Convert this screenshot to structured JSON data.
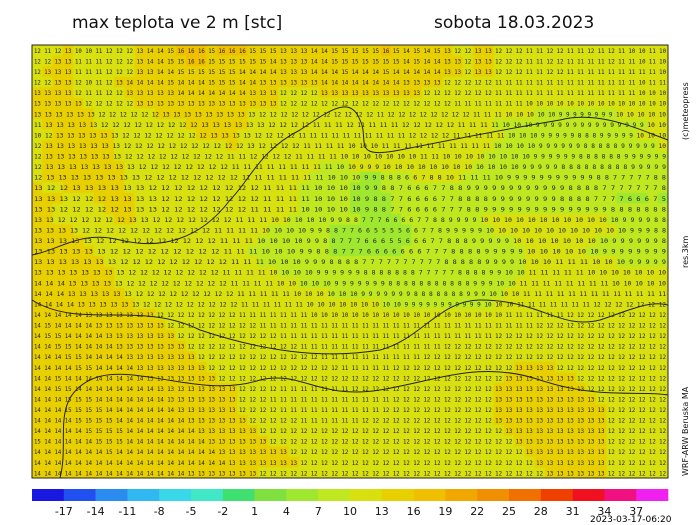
{
  "header": {
    "title": "max teplota ve 2 m [stc]",
    "date": "sobota 18.03.2023"
  },
  "side_texts": {
    "copyright": "(c)meteopress",
    "resolution": "res.3km",
    "model": "WRF-ARW Beruska MA"
  },
  "timestamp": "2023-03-17-06:20",
  "map": {
    "grid": [
      "12 11 12 13 10 10 11 12 12 12 13 14 14 15 16 16 16 15 16 16 16 15 15 15 13 13 13 14 14 15 15 15 15 15 16 15 14 15 14 15 13 12 12 13 13 12 12 12 11 11 12 12 11 11 12 11 12 11 10 10 11 10",
      "12 12 13 13 11 11 11 12 12 12 13 14 14 15 15 16 16 15 15 15 15 15 15 14 13 13 13 14 14 15 15 15 15 15 15 15 14 15 14 14 13 13 12 13 13 12 12 12 11 11 12 12 11 11 11 11 12 11 11 10 11 10",
      "12 13 13 13 11 11 11 12 12 12 13 13 14 14 15 15 15 15 15 15 14 14 14 14 13 13 13 14 14 14 15 14 14 14 15 14 14 14 14 14 13 13 12 13 13 12 12 12 11 11 12 12 11 11 11 11 11 11 11 11 11 10",
      "12 12 13 13 12 10 11 12 13 14 14 14 14 15 14 14 14 15 15 15 14 14 13 13 13 13 13 13 14 14 14 14 14 14 14 14 13 13 13 13 12 12 12 12 12 11 11 11 11 11 11 11 11 11 11 11 11 11 11 10 11 11",
      "13 13 13 13 12 11 11 12 12 13 13 13 13 13 14 14 14 14 14 14 14 13 13 13 12 12 12 12 13 13 13 13 13 13 13 13 13 13 12 12 12 12 12 12 12 11 11 11 11 11 11 11 11 11 11 11 11 11 11 10 10 10",
      "13 13 13 13 13 12 12 12 12 12 13 13 13 13 13 13 13 13 13 13 13 13 13 13 12 12 12 12 12 12 12 12 12 12 12 12 12 12 12 12 12 11 11 11 11 11 11 11 10 10 10 10 10 10 10 10 10 10 10 10 10 10",
      "13 13 13 13 13 13 12 12 12 12 12 12 13 13 13 13 13 13 13 13 13 12 12 12 12 12 12 12 12 12 12 12 11 12 12 12 12 12 12 12 12 11 11 11 10 10 10 10 10 9 9 9 9 9 9 9 9 10 10 10 10 10",
      "11 13 13 13 13 13 12 12 12 12 12 12 12 12 12 13 13 13 13 13 13 12 12 12 12 11 11 11 12 11 11 11 11 12 12 12 12 12 11 11 11 11 10 10 10 9 9 9 9 9 9 9 9 9 9 9 9 9 9 9 10 10",
      "10 12 13 13 13 13 13 13 12 12 12 12 12 12 12 12 13 13 13 13 12 12 12 12 11 11 11 11 11 11 11 11 11 11 12 12 12 12 11 11 11 11 11 10 10 10 9 9 9 9 9 8 8 8 9 9 9 9 9 10 10 10",
      "12 13 13 13 13 13 13 13 12 12 12 12 12 12 12 12 12 12 12 13 12 12 12 12 11 11 11 11 10 10 10 11 11 11 11 11 11 11 11 11 11 10 10 10 10 9 9 9 9 9 9 8 8 8 8 8 9 9 9 9 9 10",
      "12 13 13 13 13 13 13 13 12 12 12 12 12 12 12 12 12 11 11 12 12 12 12 11 11 11 11 10 10 10 10 10 10 10 11 11 10 10 10 10 10 10 10 10 9 9 9 9 9 9 8 8 8 8 8 8 9 9 9 9 9 9",
      "12 13 13 13 13 13 13 13 13 12 12 12 12 12 12 12 12 11 11 11 11 11 11 11 11 11 10 10 9 9 9 10 10 10 10 10 10 10 10 10 10 10 10 9 9 9 9 9 8 8 8 8 8 8 8 8 8 9 9 9 9 9",
      "12 13 13 13 13 13 13 13 13 12 12 12 12 12 12 12 12 11 11 11 11 11 11 11 10 10 10 9 9 8 8 8 6 6 7 8 8 10 11 11 11 10 9 9 9 9 9 9 9 9 9 9 9 8 8 7 7 7 7 7 8 8",
      "13 12 12 13 13 13 13 13 13 12 12 12 12 12 12 12 12 12 11 11 11 11 10 10 10 10 9 9 8 8 7 6 6 6 7 7 8 8 9 9 9 9 9 9 9 9 9 9 9 9 8 8 8 8 7 7 7 7 7 7 7 8",
      "13 13 13 12 12 12 13 13 13 13 12 12 12 12 12 12 12 12 11 11 11 11 10 10 10 10 9 8 8 7 7 6 6 6 6 7 7 8 8 8 8 9 9 9 9 9 9 9 9 8 8 8 8 7 7 7 7 6 6 6 7 5",
      "13 13 12 12 12 12 12 13 13 13 12 12 12 12 12 12 12 11 11 11 11 10 10 10 10 10 9 8 8 7 7 6 6 6 6 7 7 7 8 8 9 9 9 9 9 9 9 9 9 9 9 9 9 9 9 8 8 8 8 8 8 8",
      "13 13 12 12 12 12 12 12 13 13 12 12 12 12 12 12 12 11 11 11 10 10 10 10 10 9 9 8 8 7 7 7 6 6 6 6 7 7 8 8 9 9 9 9 10 10 10 10 10 10 10 10 10 10 10 10 9 9 9 9 8 8",
      "13 13 13 13 12 12 12 12 12 12 12 12 12 12 12 11 11 11 11 10 10 10 10 9 9 8 8 7 7 6 6 5 5 5 5 6 6 7 7 8 9 9 9 9 9 10 10 10 10 10 10 10 10 10 10 10 10 9 9 9 8 8",
      "13 13 13 13 13 12 12 12 12 12 12 12 12 12 12 11 11 11 10 10 10 10 9 9 8 8 7 7 7 6 6 6 5 5 6 6 6 7 7 8 8 8 9 9 9 9 9 10 10 10 10 10 10 10 10 9 9 9 9 9 9 8",
      "13 13 13 13 13 13 12 12 12 12 12 12 12 12 12 11 11 11 10 10 10 9 9 8 8 8 7 7 7 6 6 6 6 6 6 6 7 7 7 8 8 8 8 9 9 9 9 9 10 10 10 10 10 10 9 9 9 9 9 9 9 9",
      "13 13 13 13 13 13 13 12 12 12 12 12 12 12 12 12 11 11 11 10 10 10 9 9 9 8 8 8 8 7 7 7 7 7 7 7 7 7 7 8 8 8 8 8 9 9 9 9 10 10 10 11 11 11 10 10 10 9 9 9 9 9",
      "13 13 13 13 13 13 13 13 12 12 12 12 12 12 12 12 11 11 11 11 10 10 10 10 9 9 9 9 9 9 8 8 8 8 8 8 8 7 7 7 7 7 8 8 8 8 9 9 10 10 11 11 11 11 11 10 10 10 10 10 10 10",
      "14 14 14 13 13 13 13 13 12 12 12 12 12 12 12 12 12 11 11 11 11 10 10 10 10 10 9 9 9 9 9 9 9 8 8 8 8 8 8 8 8 8 8 8 9 9 9 10 10 11 11 11 11 11 11 11 11 10 10 10 10 10",
      "14 14 14 13 13 13 13 13 13 12 12 12 12 12 12 12 12 12 11 11 11 11 11 10 10 10 10 10 10 9 9 9 9 9 9 9 8 8 8 8 8 8 8 9 9 9 10 10 10 11 11 11 11 11 11 11 11 11 11 11 11 11",
      "14 14 14 14 13 13 13 13 13 13 12 12 12 12 12 12 12 12 12 11 11 11 11 11 11 10 10 10 10 10 10 10 10 10 9 9 9 9 9 9 9 9 9 9 9 10 10 10 11 11 11 11 11 11 11 12 12 12 12 12 12 12",
      "14 14 14 14 14 13 13 13 13 13 13 13 12 12 12 12 12 12 12 12 11 11 11 11 11 11 11 10 10 10 10 10 10 10 10 10 10 10 10 10 10 10 10 10 10 10 11 11 11 11 11 11 12 12 12 12 12 12 12 12 12 12",
      "14 15 14 14 14 14 13 13 13 13 13 13 13 12 12 12 12 12 12 12 12 12 11 11 11 11 11 11 11 11 11 11 11 11 11 11 11 11 11 11 11 11 11 11 11 11 11 11 11 12 12 12 12 12 12 12 12 12 12 12 12 12",
      "14 15 15 14 14 14 14 13 13 13 13 13 13 13 12 12 12 12 12 12 12 12 12 12 11 11 11 11 11 11 11 11 11 11 11 11 11 11 11 11 11 11 11 11 11 12 12 12 12 12 12 12 12 12 12 12 12 12 12 12 12 12",
      "14 14 15 15 14 14 14 14 13 13 13 13 13 13 13 12 12 12 12 12 12 12 12 12 12 12 11 11 11 11 11 11 11 11 11 11 11 11 11 11 12 12 12 12 12 12 12 12 12 12 12 12 12 12 12 12 12 12 12 12 12 12",
      "14 14 14 15 15 14 14 14 14 13 13 13 13 13 13 13 12 12 12 12 12 12 12 12 12 12 12 12 11 11 11 11 11 11 11 11 11 11 12 12 12 12 12 12 12 12 12 12 12 12 12 12 12 12 12 12 12 12 12 12 12 12",
      "14 14 14 14 15 15 14 14 14 14 13 13 13 13 13 13 13 12 12 12 12 12 12 12 12 12 12 12 12 12 11 11 11 11 11 12 12 12 12 12 12 12 12 12 12 12 12 13 13 13 13 12 12 12 12 12 12 12 12 12 12 12",
      "14 14 15 14 14 14 14 14 14 14 14 13 13 13 13 13 13 13 12 12 12 12 12 12 12 12 12 12 12 12 12 12 12 12 12 12 12 12 12 12 12 12 12 12 12 12 13 13 13 13 13 13 13 12 12 12 12 12 12 12 12 12",
      "14 14 15 15 14 14 14 14 14 14 14 14 13 13 13 13 13 13 13 13 12 12 12 12 11 11 11 11 11 11 11 12 12 12 12 12 12 12 12 12 12 12 12 12 12 13 13 13 13 13 13 13 13 13 12 12 12 12 12 12 12 12",
      "14 14 14 15 15 15 14 14 14 14 14 14 14 13 13 13 13 13 13 13 12 12 12 11 11 11 11 11 11 11 11 11 11 11 11 12 12 12 12 12 12 12 12 12 12 13 13 13 13 13 13 13 13 13 13 12 12 12 12 12 12 12",
      "14 14 14 15 15 15 15 14 14 14 14 14 14 14 13 13 13 13 13 13 12 12 12 12 11 11 11 11 11 11 11 11 11 11 12 12 12 12 12 12 12 12 12 12 12 13 13 13 13 13 13 13 13 13 13 13 12 12 12 12 12 12",
      "14 14 14 14 15 15 15 15 14 14 14 14 14 14 14 13 13 13 13 13 13 12 12 12 12 12 11 11 11 11 11 11 12 12 12 12 12 12 12 12 12 12 12 12 12 13 13 13 13 13 13 13 13 13 13 13 12 12 12 12 12 12",
      "14 14 14 14 14 15 15 15 15 14 14 14 14 14 14 14 13 13 13 13 13 13 12 12 12 12 12 12 12 12 12 12 12 12 12 12 12 12 12 12 12 12 12 12 12 12 13 13 13 13 13 13 13 13 13 13 12 12 12 12 12 12",
      "15 14 14 14 14 14 15 15 15 14 14 14 14 14 14 14 14 13 13 13 13 13 13 12 12 12 12 12 12 12 12 12 12 12 12 12 12 12 12 12 12 12 12 12 12 12 12 13 13 13 13 13 13 13 13 13 12 12 12 12 12 12",
      "14 14 14 14 14 14 14 15 14 14 14 14 14 14 14 14 14 14 13 13 13 13 13 13 13 12 12 12 12 12 12 12 12 12 12 12 12 12 12 12 12 12 12 12 12 12 12 12 13 13 13 13 13 13 13 13 12 12 12 12 12 12",
      "14 14 14 14 14 14 14 14 14 14 14 14 14 14 14 14 14 14 14 13 13 13 13 13 13 13 12 12 12 12 12 12 12 12 12 12 12 12 12 12 12 12 12 12 12 12 12 12 12 13 13 13 13 13 13 13 12 12 12 12 12 12",
      "14 14 14 14 14 14 14 14 14 14 14 14 14 14 14 13 13 13 13 13 13 13 12 12 12 12 12 12 12 12 12 12 12 12 12 12 12 12 12 12 12 12 12 12 12 12 12 12 12 12 13 13 13 13 13 13 12 12 12 12 12 12"
    ]
  },
  "colorbar": {
    "labels": [
      -17,
      -14,
      -11,
      -8,
      -5,
      -2,
      1,
      4,
      7,
      10,
      13,
      16,
      19,
      22,
      25,
      28,
      31,
      34,
      37
    ],
    "colors": [
      "#1818e0",
      "#2050f0",
      "#2a8cf0",
      "#30b8f0",
      "#38d8e8",
      "#40e8c8",
      "#40e070",
      "#80e040",
      "#a0e830",
      "#c0e820",
      "#d8e010",
      "#e8d000",
      "#f0c000",
      "#f0a800",
      "#f09000",
      "#f07000",
      "#f04000",
      "#f01020",
      "#f01080",
      "#f020f0"
    ]
  }
}
